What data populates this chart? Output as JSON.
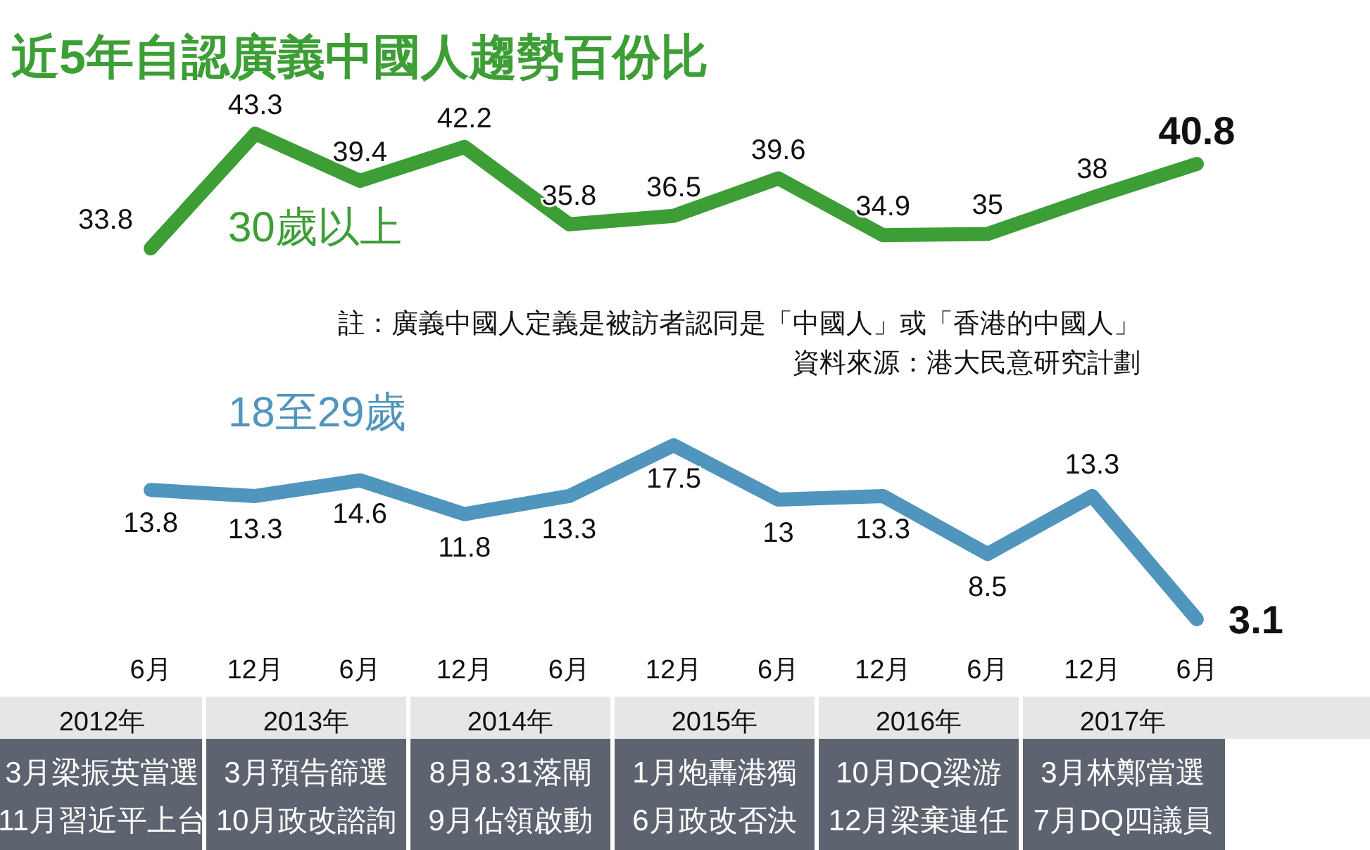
{
  "chart_data": {
    "type": "line",
    "title": "近5年自認廣義中國人趨勢百份比",
    "categories": [
      "6月",
      "12月",
      "6月",
      "12月",
      "6月",
      "12月",
      "6月",
      "12月",
      "6月",
      "12月",
      "6月"
    ],
    "series": [
      {
        "name": "30歲以上",
        "color": "#3c9e35",
        "values": [
          33.8,
          43.3,
          39.4,
          42.2,
          35.8,
          36.5,
          39.6,
          34.9,
          35,
          38,
          40.8
        ]
      },
      {
        "name": "18至29歲",
        "color": "#4f95bd",
        "values": [
          13.8,
          13.3,
          14.6,
          11.8,
          13.3,
          17.5,
          13,
          13.3,
          8.5,
          13.3,
          3.1
        ]
      }
    ],
    "data_labels": true,
    "annotations": [
      "註：廣義中國人定義是被訪者認同是「中國人」或「香港的中國人」",
      "資料來源：港大民意研究計劃",
      "2012年",
      "3月梁振英當選",
      "11月習近平上台",
      "2013年",
      "3月預告篩選",
      "10月政改諮詢",
      "2014年",
      "8月8.31落閘",
      "9月佔領啟動",
      "2015年",
      "1月炮轟港獨",
      "6月政改否決",
      "2016年",
      "10月DQ梁游",
      "12月梁棄連任",
      "2017年",
      "3月林鄭當選",
      "7月DQ四議員"
    ]
  }
}
